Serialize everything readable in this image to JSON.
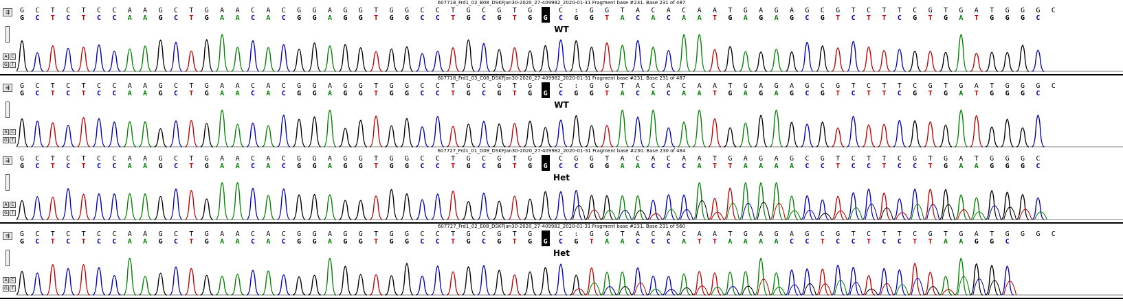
{
  "lanes": [
    {
      "header": "607718_Frd1_02_B08_DSKFJan30-2020_27-409982_2020-01-31 Fragment base #231. Base 231 of 487",
      "reference": "GCTCTCCAAGCTGAACACGGAGGTGGCCTGCGTGGC:GGTACACAATGAGAGCGTCTTCGTGATGGGC",
      "called": "GCTCTCCAAGCTGAACACGGAGGTGGCCTGCGTGGCGGTACACAATGAGAGCGTCTTCGTGATGGGC",
      "highlight_index": 34,
      "genotype": "WT",
      "trace_mix": 0.0
    },
    {
      "header": "607718_Frd1_03_C08_DSKFJan30-2020_27-409982_2020-01-31 Fragment base #231. Base 231 of 487",
      "reference": "GCTCTCCAAGCTGAACACGGAGGTGGCCTGCGTGGC:GGTACACAATGAGAGCGTCTTCGTGATGGGC",
      "called": "GCTCTCCAAGCTGAACACGGAGGTGGCCTGCGTGGCGGTACACAATGAGAGCGTCTTCGTGATGGGC",
      "highlight_index": 34,
      "genotype": "WT",
      "trace_mix": 0.0
    },
    {
      "header": "607727_Frd1_01_D08_DSKFJan30-2020_27-409982_2020-01-31 Fragment base #230. Base 230 of 484",
      "reference": "GCTCTCCAAGCTGAACACGGAGGTGGCCTGCGTGGCGGTACACAATGAGAGCGTCTTCGTGATGGGC",
      "called": "GCTCTCCAAGCTGAACACGGAGGTGGCCTGCGTGGCCGGAACCCATTAAAACCTCCTCCTGAAGGGC",
      "highlight_index": 34,
      "genotype": "Het",
      "trace_mix": 1.0
    },
    {
      "header": "607727_Frd1_02_E08_DSKFJan30-2020_27-409982_2020-01-31 Fragment base #231. Base 231 of 560",
      "reference": "GCTCTCCAAGCTGAACACGGAGGTGGCCTGCGTGGC:GGTACACAATGAGAGCGTCTTCGTGATGGGC",
      "called": "GCTCTCCAAGCTGAACACGGAGGTGGCCTGCGTGGCGTAACCCATTAAAACCTCCTCCTTAAGGC",
      "highlight_index": 34,
      "genotype": "Het",
      "trace_mix": 1.0
    }
  ],
  "tool_labels": {
    "a": "A",
    "c": "C",
    "g": "G",
    "t": "T",
    "nav": "⇶"
  },
  "colors": {
    "A": "#008000",
    "C": "#0000b0",
    "G": "#000000",
    "T": "#c00000"
  }
}
